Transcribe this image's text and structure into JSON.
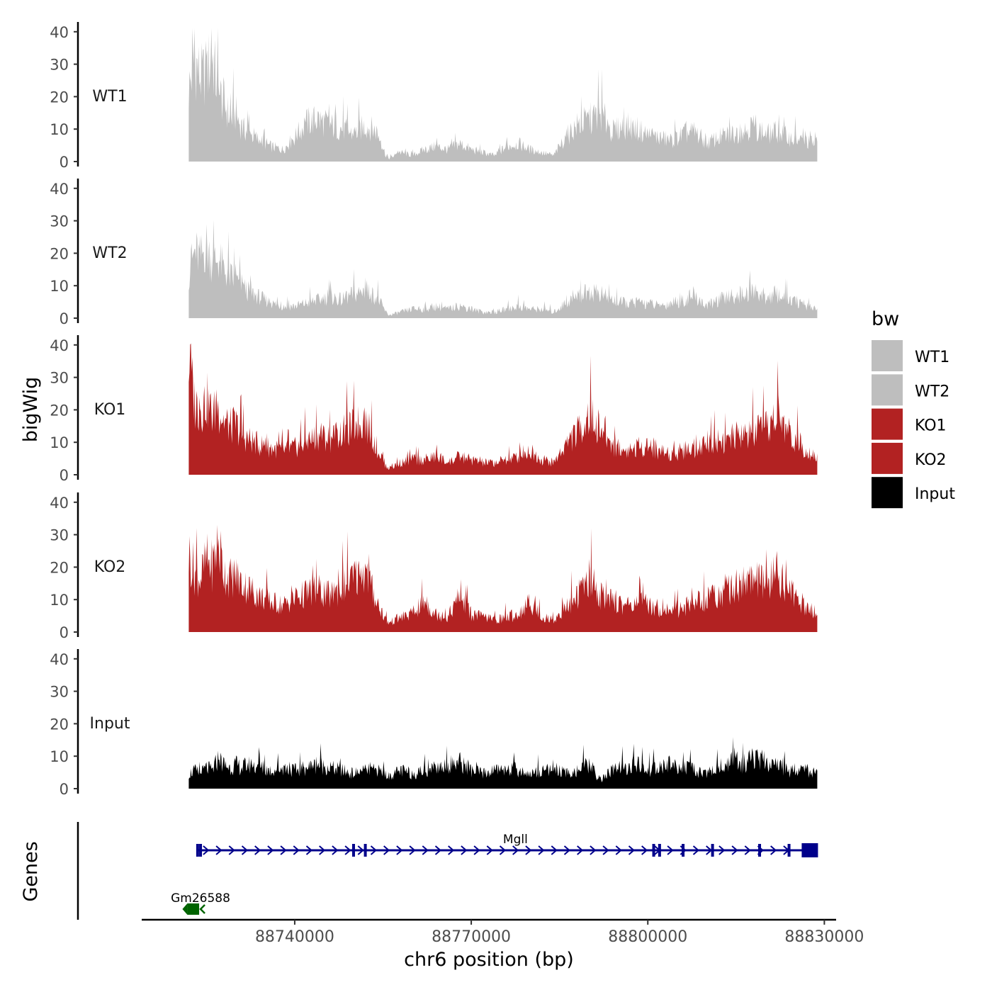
{
  "chart_data": {
    "type": "area",
    "title": "",
    "xlabel": "chr6 position (bp)",
    "ylabel": "bigWig",
    "genes_label": "Genes",
    "chromosome": "chr6",
    "xlim": [
      88714000,
      88832000
    ],
    "ylim": [
      0,
      42
    ],
    "x_range_data": [
      88722000,
      88828800
    ],
    "x_ticks": [
      88740000,
      88770000,
      88800000,
      88830000
    ],
    "x_tick_labels": [
      "88740000",
      "88770000",
      "88800000",
      "88830000"
    ],
    "y_ticks": [
      0,
      10,
      20,
      30,
      40
    ],
    "y_tick_labels": [
      "0",
      "10",
      "20",
      "30",
      "40"
    ],
    "legend": {
      "title": "bw",
      "position": "right",
      "entries": [
        {
          "label": "WT1",
          "color": "#bebebe"
        },
        {
          "label": "WT2",
          "color": "#bebebe"
        },
        {
          "label": "KO1",
          "color": "#b22222"
        },
        {
          "label": "KO2",
          "color": "#b22222"
        },
        {
          "label": "Input",
          "color": "#000000"
        }
      ]
    },
    "series": [
      {
        "name": "WT1",
        "color": "#bebebe",
        "x": [
          88722000,
          88723000,
          88724000,
          88725000,
          88726000,
          88727000,
          88728000,
          88729000,
          88730000,
          88731000,
          88732000,
          88734000,
          88736000,
          88738000,
          88740000,
          88742000,
          88744000,
          88746000,
          88748000,
          88750000,
          88752000,
          88754000,
          88755500,
          88756000,
          88758000,
          88760000,
          88762000,
          88764000,
          88766000,
          88768000,
          88770000,
          88772000,
          88774000,
          88776000,
          88778000,
          88780000,
          88782000,
          88784000,
          88786000,
          88788000,
          88790000,
          88792000,
          88794000,
          88796000,
          88798000,
          88800000,
          88802000,
          88804000,
          88806000,
          88808000,
          88810000,
          88812000,
          88814000,
          88816000,
          88818000,
          88820000,
          88822000,
          88824000,
          88826000,
          88828800
        ],
        "values": [
          24,
          34,
          28,
          30,
          35,
          23,
          20,
          14,
          16,
          11,
          10,
          7,
          5,
          4,
          8,
          13,
          14,
          12,
          11,
          9,
          12,
          10,
          2,
          1,
          3,
          2,
          4,
          5,
          4,
          6,
          4,
          3,
          2,
          5,
          6,
          4,
          3,
          2,
          8,
          12,
          14,
          16,
          10,
          12,
          11,
          9,
          8,
          7,
          9,
          10,
          6,
          8,
          9,
          10,
          12,
          9,
          10,
          8,
          7,
          6
        ]
      },
      {
        "name": "WT2",
        "color": "#bebebe",
        "x": [
          88722000,
          88723000,
          88724000,
          88725000,
          88726000,
          88727000,
          88728000,
          88729000,
          88730000,
          88731000,
          88732000,
          88734000,
          88736000,
          88738000,
          88740000,
          88742000,
          88744000,
          88746000,
          88748000,
          88750000,
          88752000,
          88754000,
          88755500,
          88756000,
          88758000,
          88760000,
          88762000,
          88764000,
          88766000,
          88768000,
          88770000,
          88772000,
          88774000,
          88776000,
          88778000,
          88780000,
          88782000,
          88784000,
          88786000,
          88788000,
          88790000,
          88792000,
          88794000,
          88796000,
          88798000,
          88800000,
          88802000,
          88804000,
          88806000,
          88808000,
          88810000,
          88812000,
          88814000,
          88816000,
          88818000,
          88820000,
          88822000,
          88824000,
          88826000,
          88828800
        ],
        "values": [
          15,
          22,
          20,
          24,
          18,
          20,
          16,
          14,
          12,
          11,
          9,
          7,
          5,
          4,
          4,
          5,
          6,
          7,
          6,
          8,
          9,
          7,
          2,
          1,
          2,
          3,
          3,
          4,
          3,
          4,
          3,
          2,
          2,
          3,
          4,
          3,
          3,
          2,
          5,
          7,
          9,
          8,
          6,
          5,
          5,
          5,
          4,
          5,
          6,
          7,
          4,
          6,
          7,
          8,
          9,
          7,
          8,
          6,
          5,
          3
        ]
      },
      {
        "name": "KO1",
        "color": "#b22222",
        "x": [
          88722000,
          88723000,
          88724000,
          88725000,
          88726000,
          88727000,
          88728000,
          88729000,
          88730000,
          88731000,
          88732000,
          88734000,
          88736000,
          88738000,
          88740000,
          88742000,
          88744000,
          88746000,
          88748000,
          88750000,
          88752000,
          88754000,
          88755500,
          88756000,
          88758000,
          88760000,
          88762000,
          88764000,
          88766000,
          88768000,
          88770000,
          88772000,
          88774000,
          88776000,
          88778000,
          88780000,
          88782000,
          88784000,
          88786000,
          88788000,
          88790000,
          88792000,
          88794000,
          88796000,
          88798000,
          88800000,
          88802000,
          88804000,
          88806000,
          88808000,
          88810000,
          88812000,
          88814000,
          88816000,
          88818000,
          88820000,
          88822000,
          88824000,
          88826000,
          88828800
        ],
        "values": [
          38,
          24,
          22,
          25,
          20,
          22,
          18,
          16,
          17,
          13,
          12,
          10,
          9,
          8,
          9,
          11,
          13,
          12,
          14,
          16,
          18,
          9,
          3,
          2,
          4,
          5,
          5,
          6,
          4,
          6,
          5,
          4,
          4,
          5,
          6,
          8,
          5,
          4,
          10,
          14,
          20,
          15,
          10,
          8,
          9,
          10,
          8,
          7,
          8,
          9,
          10,
          12,
          11,
          13,
          14,
          15,
          20,
          14,
          10,
          6
        ]
      },
      {
        "name": "KO2",
        "color": "#b22222",
        "x": [
          88722000,
          88723000,
          88724000,
          88725000,
          88726000,
          88727000,
          88728000,
          88729000,
          88730000,
          88731000,
          88732000,
          88734000,
          88736000,
          88738000,
          88740000,
          88742000,
          88744000,
          88746000,
          88748000,
          88750000,
          88752000,
          88754000,
          88755500,
          88756000,
          88758000,
          88760000,
          88762000,
          88764000,
          88766000,
          88768000,
          88770000,
          88772000,
          88774000,
          88776000,
          88778000,
          88780000,
          88782000,
          88784000,
          88786000,
          88788000,
          88790000,
          88792000,
          88794000,
          88796000,
          88798000,
          88800000,
          88802000,
          88804000,
          88806000,
          88808000,
          88810000,
          88812000,
          88814000,
          88816000,
          88818000,
          88820000,
          88822000,
          88824000,
          88826000,
          88828800
        ],
        "values": [
          26,
          20,
          18,
          24,
          22,
          30,
          20,
          18,
          19,
          16,
          15,
          12,
          10,
          9,
          11,
          13,
          14,
          12,
          15,
          18,
          20,
          10,
          4,
          3,
          5,
          6,
          10,
          6,
          5,
          12,
          6,
          5,
          4,
          5,
          6,
          10,
          5,
          4,
          8,
          12,
          18,
          12,
          10,
          9,
          10,
          9,
          8,
          7,
          8,
          10,
          11,
          13,
          15,
          16,
          18,
          15,
          20,
          14,
          9,
          6
        ]
      },
      {
        "name": "Input",
        "color": "#000000",
        "x": [
          88722000,
          88723000,
          88724000,
          88725000,
          88726000,
          88727000,
          88728000,
          88729000,
          88730000,
          88731000,
          88732000,
          88734000,
          88736000,
          88738000,
          88740000,
          88742000,
          88744000,
          88746000,
          88748000,
          88750000,
          88752000,
          88754000,
          88755500,
          88756000,
          88758000,
          88760000,
          88762000,
          88764000,
          88766000,
          88768000,
          88770000,
          88772000,
          88774000,
          88776000,
          88778000,
          88780000,
          88782000,
          88784000,
          88786000,
          88788000,
          88790000,
          88792000,
          88794000,
          88796000,
          88798000,
          88800000,
          88802000,
          88804000,
          88806000,
          88808000,
          88810000,
          88812000,
          88814000,
          88816000,
          88818000,
          88820000,
          88822000,
          88824000,
          88826000,
          88828800
        ],
        "values": [
          5,
          6,
          5,
          7,
          6,
          10,
          8,
          7,
          8,
          7,
          8,
          7,
          6,
          7,
          6,
          7,
          8,
          7,
          6,
          5,
          6,
          6,
          5,
          4,
          6,
          5,
          6,
          7,
          8,
          9,
          6,
          5,
          6,
          7,
          6,
          5,
          6,
          7,
          5,
          6,
          8,
          3,
          6,
          7,
          8,
          6,
          7,
          8,
          7,
          6,
          5,
          7,
          9,
          8,
          10,
          9,
          8,
          6,
          7,
          5
        ]
      }
    ],
    "genes": [
      {
        "name": "Mgll",
        "start": 88723500,
        "end": 88828800,
        "strand": "+",
        "color": "#00008b",
        "exons": [
          88723500,
          88724000,
          88750000,
          88752000,
          88801000,
          88802000,
          88806000,
          88811000,
          88819000,
          88824000
        ]
      },
      {
        "name": "Gm26588",
        "start": 88722000,
        "end": 88724000,
        "strand": "-",
        "color": "#006400",
        "exons": []
      }
    ]
  }
}
